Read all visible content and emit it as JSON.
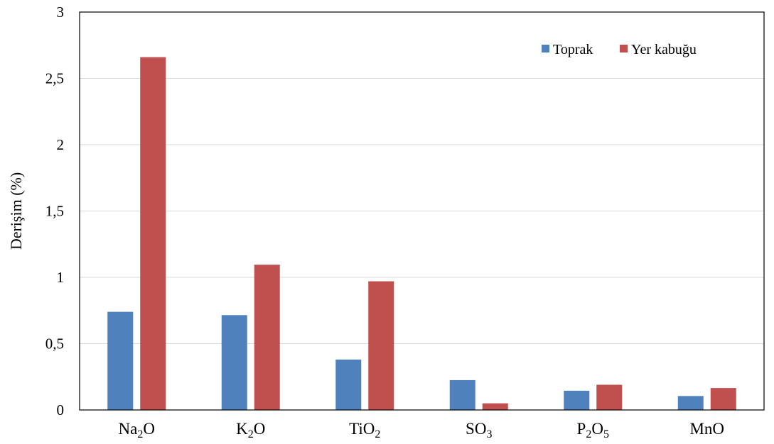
{
  "chart_data": {
    "type": "bar",
    "title": "",
    "xlabel": "",
    "ylabel": "Derişim (%)",
    "categories": [
      {
        "base": "Na",
        "sub": "2",
        "tail": "O"
      },
      {
        "base": "K",
        "sub": "2",
        "tail": "O"
      },
      {
        "base": "TiO",
        "sub": "2",
        "tail": ""
      },
      {
        "base": "SO",
        "sub": "3",
        "tail": ""
      },
      {
        "base": "P",
        "sub": "2",
        "tail": "O",
        "sub2": "5"
      },
      {
        "base": "MnO",
        "sub": "",
        "tail": ""
      }
    ],
    "series": [
      {
        "name": "Toprak",
        "color": "#4f81bd",
        "values": [
          0.74,
          0.715,
          0.38,
          0.225,
          0.145,
          0.105
        ]
      },
      {
        "name": "Yer kabuğu",
        "color": "#c0504d",
        "values": [
          2.66,
          1.095,
          0.97,
          0.05,
          0.19,
          0.165
        ]
      }
    ],
    "ylim": [
      0,
      3
    ],
    "yticks": [
      "0",
      "0,5",
      "1",
      "1,5",
      "2",
      "2,5",
      "3"
    ],
    "grid": true,
    "legend_position": "top-right"
  }
}
